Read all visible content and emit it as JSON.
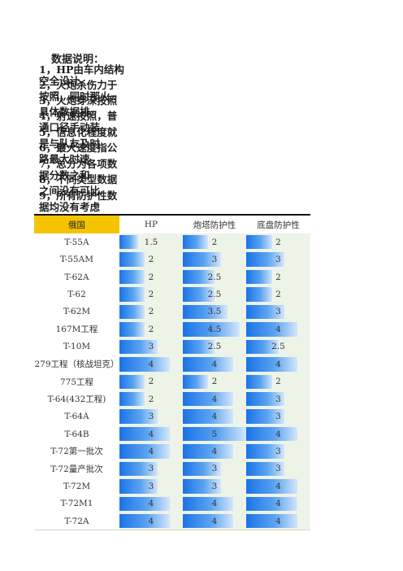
{
  "notes": {
    "title": "数据说明：",
    "items": [
      "1，HP由车内结构空全设计、",
      "2，火炮杀伤力于按照，同时那火",
      "3，火炮穿深按照具体数据排",
      "4，射速按照，普通口径手动装",
      "5，信息化程度就是与队友及时",
      "6，最大速度指公路最大时速",
      "7，总分为各项数据分数之和",
      "8，不同类型数据之间没有可比",
      "9，所有防护性数据均没有考虑"
    ]
  },
  "table": {
    "headers": [
      "俄国",
      "HP",
      "炮塔防护性",
      "底盘防护性"
    ],
    "max_value": 5,
    "rows": [
      {
        "name": "T-55A",
        "hp": "1.5",
        "turret": "2",
        "hull": "2"
      },
      {
        "name": "T-55AM",
        "hp": "2",
        "turret": "3",
        "hull": "3"
      },
      {
        "name": "T-62A",
        "hp": "2",
        "turret": "2.5",
        "hull": "2"
      },
      {
        "name": "T-62",
        "hp": "2",
        "turret": "2.5",
        "hull": "2"
      },
      {
        "name": "T-62M",
        "hp": "2",
        "turret": "3.5",
        "hull": "3"
      },
      {
        "name": "167M工程",
        "hp": "2",
        "turret": "4.5",
        "hull": "4"
      },
      {
        "name": "T-10M",
        "hp": "3",
        "turret": "2.5",
        "hull": "2.5"
      },
      {
        "name": "279工程（核战坦克）",
        "hp": "4",
        "turret": "4",
        "hull": "4"
      },
      {
        "name": "775工程",
        "hp": "2",
        "turret": "2",
        "hull": "2"
      },
      {
        "name": "T-64(432工程)",
        "hp": "2",
        "turret": "4",
        "hull": "3"
      },
      {
        "name": "T-64A",
        "hp": "3",
        "turret": "4",
        "hull": "3"
      },
      {
        "name": "T-64B",
        "hp": "4",
        "turret": "5",
        "hull": "4"
      },
      {
        "name": "T-72第一批次",
        "hp": "4",
        "turret": "4",
        "hull": "3"
      },
      {
        "name": "T-72量产批次",
        "hp": "3",
        "turret": "3",
        "hull": "3"
      },
      {
        "name": "T-72M",
        "hp": "3",
        "turret": "3",
        "hull": "4"
      },
      {
        "name": "T-72M1",
        "hp": "4",
        "turret": "4",
        "hull": "4"
      },
      {
        "name": "T-72A",
        "hp": "4",
        "turret": "4",
        "hull": "4"
      }
    ]
  }
}
